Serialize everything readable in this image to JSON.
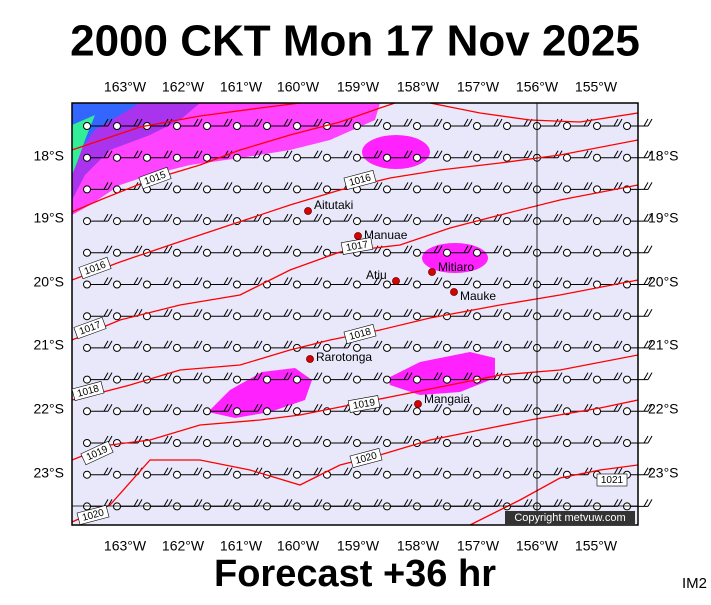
{
  "header": {
    "title": "2000 CKT Mon 17 Nov 2025"
  },
  "footer": {
    "forecast": "Forecast +36 hr",
    "image_id": "IM2"
  },
  "map": {
    "longitude_labels": [
      "163°W",
      "162°W",
      "161°W",
      "160°W",
      "159°W",
      "158°W",
      "157°W",
      "156°W",
      "155°W"
    ],
    "latitude_labels": [
      "18°S",
      "19°S",
      "20°S",
      "21°S",
      "22°S",
      "23°S"
    ],
    "places": [
      "Aitutaki",
      "Manuae",
      "Mitiaro",
      "Atiu",
      "Mauke",
      "Rarotonga",
      "Mangaia"
    ],
    "isobar_labels": [
      "1015",
      "1016",
      "1016",
      "1017",
      "1017",
      "1018",
      "1018",
      "1019",
      "1019",
      "1020",
      "1020",
      "1021"
    ],
    "copyright": "Copyright metvuw.com"
  }
}
